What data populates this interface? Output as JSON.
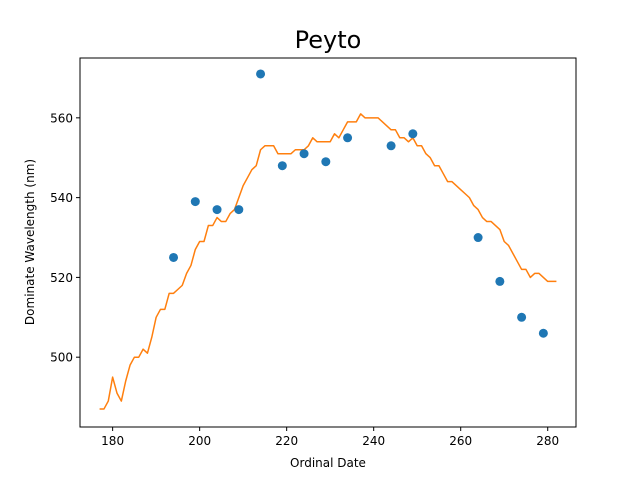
{
  "chart_data": {
    "type": "scatter",
    "title": "Peyto",
    "xlabel": "Ordinal Date",
    "ylabel": "Dominate Wavelength (nm)",
    "xlim": [
      172.5,
      286.5
    ],
    "ylim": [
      482.5,
      575
    ],
    "xticks": [
      180,
      200,
      220,
      240,
      260,
      280
    ],
    "yticks": [
      500,
      520,
      540,
      560
    ],
    "grid": false,
    "colors": {
      "points": "#1f77b4",
      "line": "#ff7f0e"
    },
    "series": [
      {
        "kind": "scatter",
        "x": [
          194,
          199,
          204,
          209,
          214,
          219,
          224,
          229,
          234,
          244,
          249,
          264,
          269,
          274,
          279
        ],
        "y": [
          525,
          539,
          537,
          537,
          571,
          548,
          551,
          549,
          555,
          553,
          556,
          530,
          519,
          510,
          506
        ]
      },
      {
        "kind": "line",
        "x": [
          177,
          178,
          179,
          180,
          181,
          182,
          183,
          184,
          185,
          186,
          187,
          188,
          189,
          190,
          191,
          192,
          193,
          194,
          195,
          196,
          197,
          198,
          199,
          200,
          201,
          202,
          203,
          204,
          205,
          206,
          207,
          208,
          209,
          210,
          211,
          212,
          213,
          214,
          215,
          216,
          217,
          218,
          219,
          220,
          221,
          222,
          223,
          224,
          225,
          226,
          227,
          228,
          229,
          230,
          231,
          232,
          233,
          234,
          235,
          236,
          237,
          238,
          239,
          240,
          241,
          242,
          243,
          244,
          245,
          246,
          247,
          248,
          249,
          250,
          251,
          252,
          253,
          254,
          255,
          256,
          257,
          258,
          259,
          260,
          261,
          262,
          263,
          264,
          265,
          266,
          267,
          268,
          269,
          270,
          271,
          272,
          273,
          274,
          275,
          276,
          277,
          278,
          279,
          280,
          281,
          282
        ],
        "y": [
          487,
          487,
          489,
          495,
          491,
          489,
          494,
          498,
          500,
          500,
          502,
          501,
          505,
          510,
          512,
          512,
          516,
          516,
          517,
          518,
          521,
          523,
          527,
          529,
          529,
          533,
          533,
          535,
          534,
          534,
          536,
          537,
          540,
          543,
          545,
          547,
          548,
          552,
          553,
          553,
          553,
          551,
          551,
          551,
          551,
          552,
          552,
          552,
          553,
          555,
          554,
          554,
          554,
          554,
          556,
          555,
          557,
          559,
          559,
          559,
          561,
          560,
          560,
          560,
          560,
          559,
          558,
          557,
          557,
          555,
          555,
          554,
          555,
          553,
          553,
          551,
          550,
          548,
          548,
          546,
          544,
          544,
          543,
          542,
          541,
          540,
          538,
          537,
          535,
          534,
          534,
          533,
          532,
          529,
          528,
          526,
          524,
          522,
          522,
          520,
          521,
          521,
          520,
          519,
          519,
          519
        ]
      }
    ]
  }
}
